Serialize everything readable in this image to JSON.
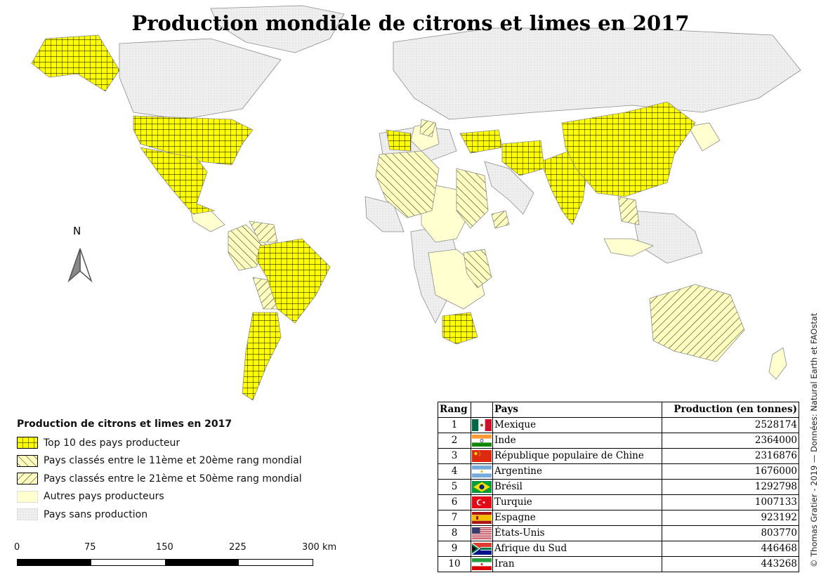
{
  "title": "Production mondiale de citrons et limes en 2017",
  "north_label": "N",
  "colors": {
    "top10": "#ffff00",
    "producer": "#ffffd0",
    "none": "#eeeeee",
    "border": "#8c8c8c",
    "hatch": "#000000"
  },
  "legend": {
    "title": "Production de citrons et limes en 2017",
    "items": [
      {
        "label": "Top 10 des pays producteur"
      },
      {
        "label": "Pays classés entre le 11ème et 20ème rang mondial"
      },
      {
        "label": "Pays classés entre le 21ème et 50ème rang mondial"
      },
      {
        "label": "Autres pays producteurs"
      },
      {
        "label": "Pays sans production"
      }
    ]
  },
  "scale": {
    "labels": [
      "0",
      "75",
      "150",
      "225",
      "300 km"
    ]
  },
  "table": {
    "headers": {
      "rank": "Rang",
      "flag": "",
      "country": "Pays",
      "production": "Production (en tonnes)"
    },
    "rows": [
      {
        "rank": "1",
        "country": "Mexique",
        "production": "2528174",
        "flag_icon": "mexico-flag-icon"
      },
      {
        "rank": "2",
        "country": "Inde",
        "production": "2364000",
        "flag_icon": "india-flag-icon"
      },
      {
        "rank": "3",
        "country": "République populaire de Chine",
        "production": "2316876",
        "flag_icon": "china-flag-icon"
      },
      {
        "rank": "4",
        "country": "Argentine",
        "production": "1676000",
        "flag_icon": "argentina-flag-icon"
      },
      {
        "rank": "5",
        "country": "Brésil",
        "production": "1292798",
        "flag_icon": "brazil-flag-icon"
      },
      {
        "rank": "6",
        "country": "Turquie",
        "production": "1007133",
        "flag_icon": "turkey-flag-icon"
      },
      {
        "rank": "7",
        "country": "Espagne",
        "production": "923192",
        "flag_icon": "spain-flag-icon"
      },
      {
        "rank": "8",
        "country": "États-Unis",
        "production": "803770",
        "flag_icon": "usa-flag-icon"
      },
      {
        "rank": "9",
        "country": "Afrique du Sud",
        "production": "446468",
        "flag_icon": "south-africa-flag-icon"
      },
      {
        "rank": "10",
        "country": "Iran",
        "production": "443268",
        "flag_icon": "iran-flag-icon"
      }
    ]
  },
  "credit": "© Thomas Gratier - 2019 — Données: Natural Earth et FAOstat"
}
